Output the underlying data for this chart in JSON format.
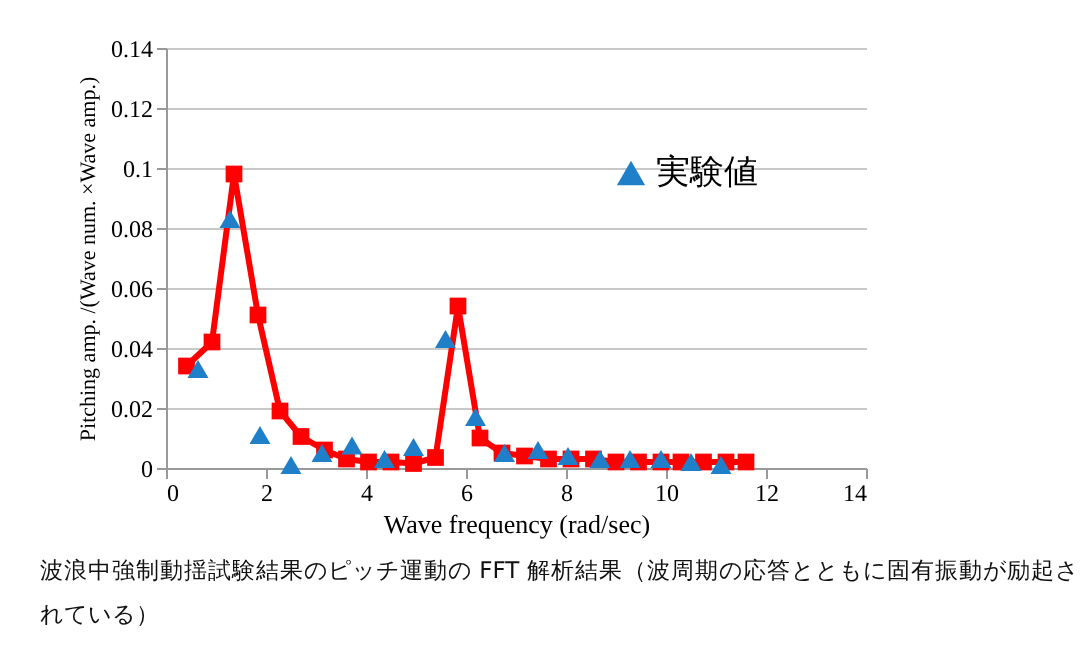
{
  "chart_data": {
    "type": "line",
    "xlabel": "Wave frequency (rad/sec)",
    "ylabel": "Pitching amp. /(Wave num. ×Wave amp.)",
    "xlim": [
      0,
      14
    ],
    "xticks": [
      0,
      2,
      4,
      6,
      8,
      10,
      12,
      14
    ],
    "ylim": [
      0,
      0.14
    ],
    "yticks": [
      0,
      0.02,
      0.04,
      0.06,
      0.08,
      0.1,
      0.12,
      0.14
    ],
    "grid": "y",
    "legend": "top right",
    "series": [
      {
        "type": "line",
        "color": "#ff0000",
        "marker": "square",
        "x": [
          0.41,
          0.92,
          1.36,
          1.84,
          2.28,
          2.7,
          3.17,
          3.61,
          4.05,
          4.5,
          4.95,
          5.39,
          5.84,
          6.28,
          6.72,
          7.17,
          7.65,
          8.1,
          8.55,
          9.0,
          9.45,
          9.9,
          10.3,
          10.75,
          11.2,
          11.6
        ],
        "values": [
          0.034,
          0.042,
          0.098,
          0.051,
          0.019,
          0.0105,
          0.006,
          0.003,
          0.002,
          0.002,
          0.0015,
          0.0035,
          0.054,
          0.01,
          0.005,
          0.004,
          0.003,
          0.003,
          0.003,
          0.002,
          0.002,
          0.002,
          0.002,
          0.002,
          0.002,
          0.002
        ]
      },
      {
        "type": "scatter",
        "name": "実験値",
        "color": "#1f7fc8",
        "marker": "triangle",
        "x": [
          0.64,
          1.28,
          1.88,
          2.5,
          3.12,
          3.72,
          4.37,
          4.95,
          5.59,
          6.19,
          6.77,
          7.44,
          8.04,
          8.68,
          9.28,
          9.9,
          10.5,
          11.1
        ],
        "values": [
          0.033,
          0.083,
          0.011,
          0.001,
          0.005,
          0.0075,
          0.003,
          0.007,
          0.043,
          0.017,
          0.005,
          0.006,
          0.004,
          0.003,
          0.003,
          0.003,
          0.002,
          0.001
        ]
      }
    ],
    "annotations": [
      "波浪中強制動揺試験結果のピッチ運動の FFT 解析結果（波周期の応答とともに固有振動が励起されている）"
    ]
  }
}
